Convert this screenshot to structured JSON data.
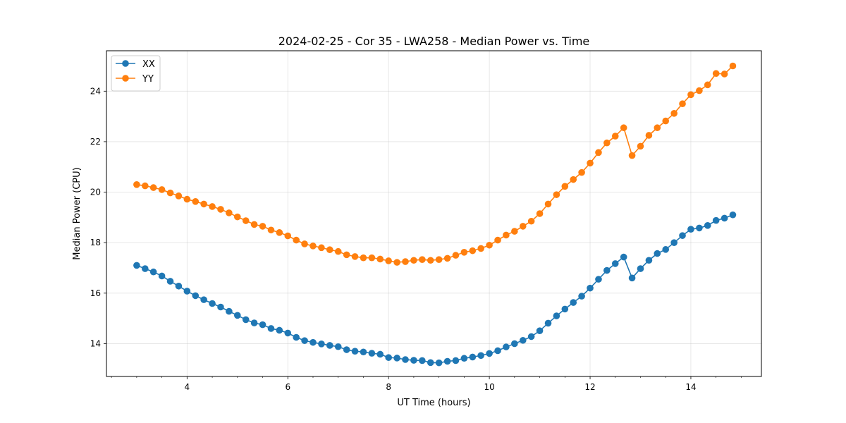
{
  "chart_data": {
    "type": "line",
    "title": "2024-02-25 - Cor 35 - LWA258 - Median Power vs. Time",
    "xlabel": "UT Time (hours)",
    "ylabel": "Median Power (CPU)",
    "xlim": [
      2.4,
      15.4
    ],
    "ylim": [
      12.7,
      25.6
    ],
    "xticks": [
      4,
      6,
      8,
      10,
      12,
      14
    ],
    "yticks": [
      14,
      16,
      18,
      20,
      22,
      24
    ],
    "grid": true,
    "legend_position": "top-left",
    "x": [
      3.0,
      3.167,
      3.333,
      3.5,
      3.667,
      3.833,
      4.0,
      4.167,
      4.333,
      4.5,
      4.667,
      4.833,
      5.0,
      5.167,
      5.333,
      5.5,
      5.667,
      5.833,
      6.0,
      6.167,
      6.333,
      6.5,
      6.667,
      6.833,
      7.0,
      7.167,
      7.333,
      7.5,
      7.667,
      7.833,
      8.0,
      8.167,
      8.333,
      8.5,
      8.667,
      8.833,
      9.0,
      9.167,
      9.333,
      9.5,
      9.667,
      9.833,
      10.0,
      10.167,
      10.333,
      10.5,
      10.667,
      10.833,
      11.0,
      11.167,
      11.333,
      11.5,
      11.667,
      11.833,
      12.0,
      12.167,
      12.333,
      12.5,
      12.667,
      12.833,
      13.0,
      13.167,
      13.333,
      13.5,
      13.667,
      13.833,
      14.0,
      14.167,
      14.333,
      14.5,
      14.667,
      14.833
    ],
    "series": [
      {
        "name": "XX",
        "color": "#1f77b4",
        "values": [
          17.1,
          16.97,
          16.84,
          16.68,
          16.47,
          16.28,
          16.08,
          15.9,
          15.74,
          15.59,
          15.45,
          15.28,
          15.12,
          14.95,
          14.82,
          14.75,
          14.6,
          14.53,
          14.42,
          14.25,
          14.12,
          14.05,
          13.99,
          13.93,
          13.88,
          13.76,
          13.7,
          13.67,
          13.62,
          13.58,
          13.45,
          13.43,
          13.37,
          13.34,
          13.33,
          13.25,
          13.24,
          13.3,
          13.33,
          13.42,
          13.47,
          13.53,
          13.61,
          13.72,
          13.87,
          14.0,
          14.13,
          14.28,
          14.51,
          14.81,
          15.1,
          15.37,
          15.63,
          15.88,
          16.2,
          16.55,
          16.9,
          17.17,
          17.43,
          16.6,
          16.97,
          17.3,
          17.57,
          17.73,
          18.0,
          18.28,
          18.53,
          18.58,
          18.68,
          18.88,
          18.97,
          19.1
        ]
      },
      {
        "name": "YY",
        "color": "#ff7f0e",
        "values": [
          20.3,
          20.25,
          20.18,
          20.1,
          19.97,
          19.85,
          19.72,
          19.63,
          19.53,
          19.43,
          19.32,
          19.18,
          19.02,
          18.87,
          18.72,
          18.65,
          18.5,
          18.4,
          18.27,
          18.1,
          17.95,
          17.87,
          17.8,
          17.72,
          17.65,
          17.52,
          17.45,
          17.4,
          17.4,
          17.35,
          17.28,
          17.22,
          17.25,
          17.3,
          17.33,
          17.3,
          17.33,
          17.38,
          17.5,
          17.62,
          17.68,
          17.77,
          17.9,
          18.1,
          18.3,
          18.45,
          18.65,
          18.85,
          19.15,
          19.53,
          19.9,
          20.23,
          20.5,
          20.78,
          21.15,
          21.57,
          21.95,
          22.22,
          22.55,
          21.45,
          21.82,
          22.25,
          22.55,
          22.82,
          23.12,
          23.5,
          23.86,
          24.02,
          24.25,
          24.7,
          24.68,
          25.0
        ]
      }
    ]
  }
}
